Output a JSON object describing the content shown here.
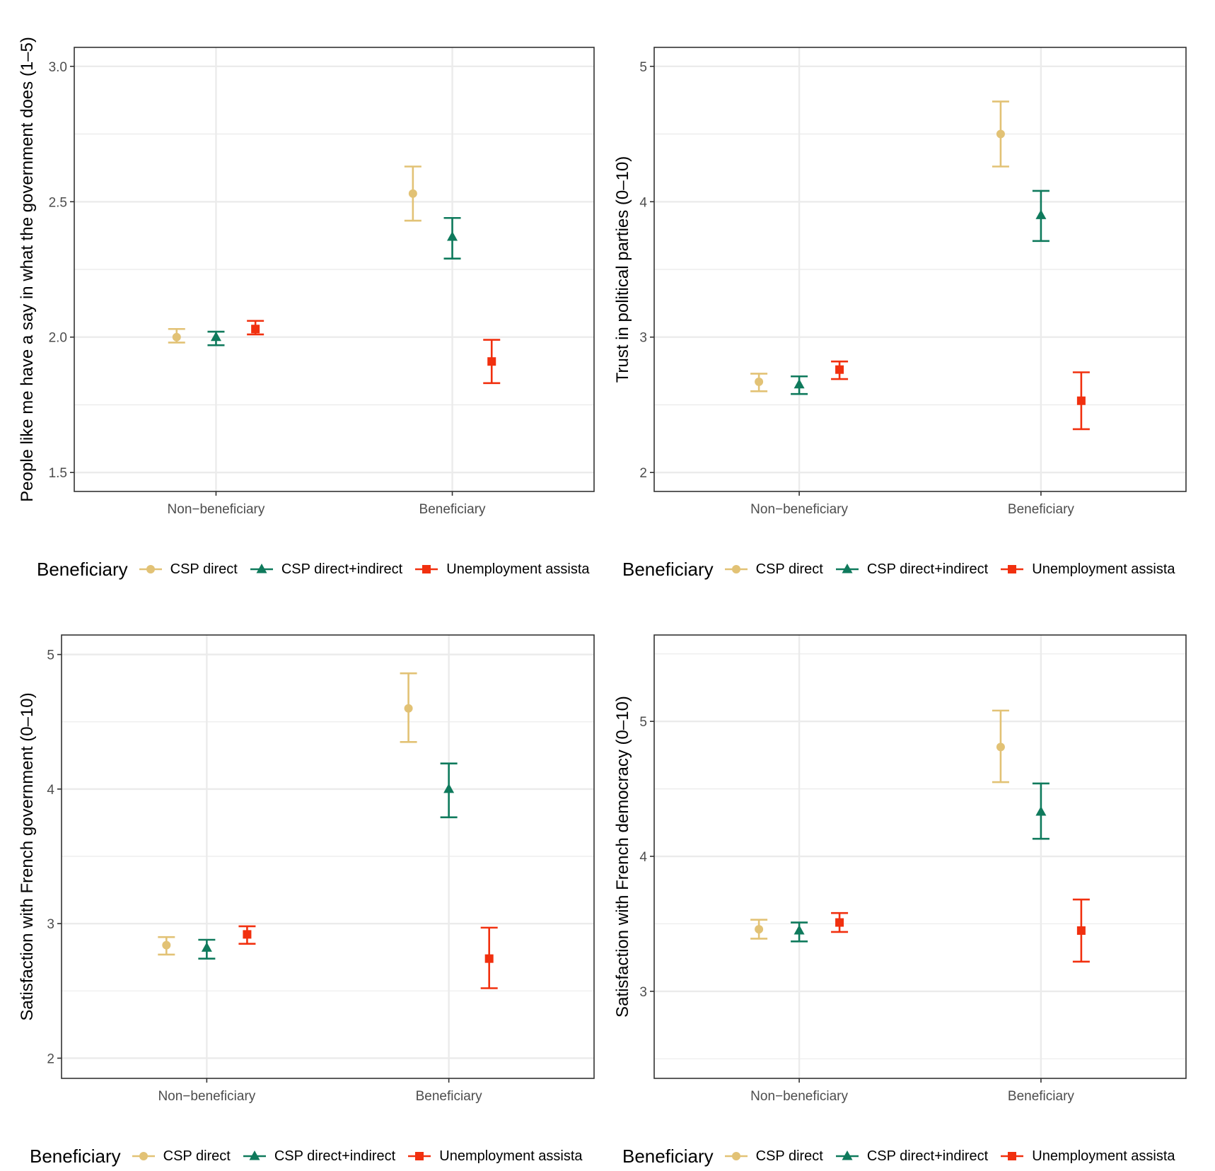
{
  "colors": {
    "csp_direct": "#E2C275",
    "csp_direct_indirect": "#0F7A5C",
    "unemployment": "#F1300F",
    "grid": "#EBEBEB",
    "axis": "#333333",
    "tick_text": "#4D4D4D"
  },
  "legend": {
    "title": "Beneficiary",
    "items": [
      {
        "label": "CSP direct",
        "shape": "circle",
        "color_key": "csp_direct"
      },
      {
        "label": "CSP direct+indirect",
        "shape": "triangle",
        "color_key": "csp_direct_indirect"
      },
      {
        "label": "Unemployment assista",
        "shape": "square",
        "color_key": "unemployment"
      }
    ]
  },
  "chart_data": [
    {
      "type": "scatter",
      "title": "",
      "xlabel": "",
      "ylabel": "People like me have a say in what the government does (1–5)",
      "categories": [
        "Non−beneficiary",
        "Beneficiary"
      ],
      "ylim": [
        1.43,
        3.07
      ],
      "yticks": [
        1.5,
        2.0,
        2.5,
        3.0
      ],
      "ytick_labels": [
        "1.5",
        "2.0",
        "2.5",
        "3.0"
      ],
      "yminor": [
        1.75,
        2.25,
        2.75
      ],
      "grid": true,
      "legend_position": "bottom",
      "series": [
        {
          "name": "CSP direct",
          "values": [
            2.0,
            2.53
          ],
          "lower": [
            1.98,
            2.43
          ],
          "upper": [
            2.03,
            2.63
          ]
        },
        {
          "name": "CSP direct+indirect",
          "values": [
            2.0,
            2.37
          ],
          "lower": [
            1.97,
            2.29
          ],
          "upper": [
            2.02,
            2.44
          ]
        },
        {
          "name": "Unemployment assistance",
          "values": [
            2.03,
            1.91
          ],
          "lower": [
            2.01,
            1.83
          ],
          "upper": [
            2.06,
            1.99
          ]
        }
      ]
    },
    {
      "type": "scatter",
      "title": "",
      "xlabel": "",
      "ylabel": "Trust in political parties (0–10)",
      "categories": [
        "Non−beneficiary",
        "Beneficiary"
      ],
      "ylim": [
        1.86,
        5.14
      ],
      "yticks": [
        2,
        3,
        4,
        5
      ],
      "ytick_labels": [
        "2",
        "3",
        "4",
        "5"
      ],
      "yminor": [
        2.5,
        3.5,
        4.5
      ],
      "grid": true,
      "legend_position": "bottom",
      "series": [
        {
          "name": "CSP direct",
          "values": [
            2.67,
            4.5
          ],
          "lower": [
            2.6,
            4.26
          ],
          "upper": [
            2.73,
            4.74
          ]
        },
        {
          "name": "CSP direct+indirect",
          "values": [
            2.65,
            3.9
          ],
          "lower": [
            2.58,
            3.71
          ],
          "upper": [
            2.71,
            4.08
          ]
        },
        {
          "name": "Unemployment assistance",
          "values": [
            2.76,
            2.53
          ],
          "lower": [
            2.69,
            2.32
          ],
          "upper": [
            2.82,
            2.74
          ]
        }
      ]
    },
    {
      "type": "scatter",
      "title": "",
      "xlabel": "",
      "ylabel": "Satisfaction with French government (0–10)",
      "categories": [
        "Non−beneficiary",
        "Beneficiary"
      ],
      "ylim": [
        1.85,
        5.145
      ],
      "yticks": [
        2,
        3,
        4,
        5
      ],
      "ytick_labels": [
        "2",
        "3",
        "4",
        "5"
      ],
      "yminor": [
        2.5,
        3.5,
        4.5
      ],
      "grid": true,
      "legend_position": "bottom",
      "series": [
        {
          "name": "CSP direct",
          "values": [
            2.84,
            4.6
          ],
          "lower": [
            2.77,
            4.35
          ],
          "upper": [
            2.9,
            4.86
          ]
        },
        {
          "name": "CSP direct+indirect",
          "values": [
            2.82,
            4.0
          ],
          "lower": [
            2.74,
            3.79
          ],
          "upper": [
            2.88,
            4.19
          ]
        },
        {
          "name": "Unemployment assistance",
          "values": [
            2.92,
            2.74
          ],
          "lower": [
            2.85,
            2.52
          ],
          "upper": [
            2.98,
            2.97
          ]
        }
      ]
    },
    {
      "type": "scatter",
      "title": "",
      "xlabel": "",
      "ylabel": "Satisfaction with French democracy (0–10)",
      "categories": [
        "Non−beneficiary",
        "Beneficiary"
      ],
      "ylim": [
        2.355,
        5.64
      ],
      "yticks": [
        3,
        4,
        5
      ],
      "ytick_labels": [
        "3",
        "4",
        "5"
      ],
      "yminor": [
        2.5,
        3.5,
        4.5,
        5.5
      ],
      "grid": true,
      "legend_position": "bottom",
      "series": [
        {
          "name": "CSP direct",
          "values": [
            3.46,
            4.81
          ],
          "lower": [
            3.39,
            4.55
          ],
          "upper": [
            3.53,
            5.08
          ]
        },
        {
          "name": "CSP direct+indirect",
          "values": [
            3.45,
            4.33
          ],
          "lower": [
            3.37,
            4.13
          ],
          "upper": [
            3.51,
            4.54
          ]
        },
        {
          "name": "Unemployment assistance",
          "values": [
            3.51,
            3.45
          ],
          "lower": [
            3.44,
            3.22
          ],
          "upper": [
            3.58,
            3.68
          ]
        }
      ]
    }
  ]
}
